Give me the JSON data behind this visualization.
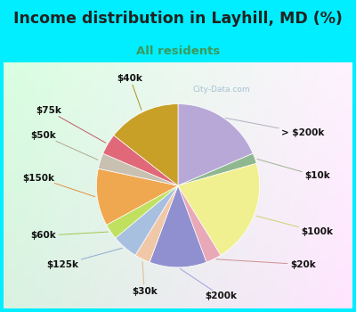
{
  "title": "Income distribution in Layhill, MD (%)",
  "subtitle": "All residents",
  "title_color": "#222222",
  "subtitle_color": "#3a9a5c",
  "background_cyan": "#00eeff",
  "watermark": "City-Data.com",
  "slices": [
    {
      "label": "> $200k",
      "value": 18,
      "color": "#b8a8d8"
    },
    {
      "label": "$10k",
      "value": 2,
      "color": "#90b890"
    },
    {
      "label": "$100k",
      "value": 20,
      "color": "#f0f090"
    },
    {
      "label": "$20k",
      "value": 3,
      "color": "#e8a8b8"
    },
    {
      "label": "$200k",
      "value": 11,
      "color": "#9090d0"
    },
    {
      "label": "$30k",
      "value": 3,
      "color": "#f0c8a8"
    },
    {
      "label": "$125k",
      "value": 5,
      "color": "#a8c0e0"
    },
    {
      "label": "$60k",
      "value": 3,
      "color": "#c0e060"
    },
    {
      "label": "$150k",
      "value": 11,
      "color": "#f0a850"
    },
    {
      "label": "$50k",
      "value": 3,
      "color": "#c8c0b0"
    },
    {
      "label": "$75k",
      "value": 4,
      "color": "#e06878"
    },
    {
      "label": "$40k",
      "value": 14,
      "color": "#c8a028"
    }
  ],
  "label_fontsize": 7.5,
  "title_fontsize": 12.5,
  "subtitle_fontsize": 9.5
}
